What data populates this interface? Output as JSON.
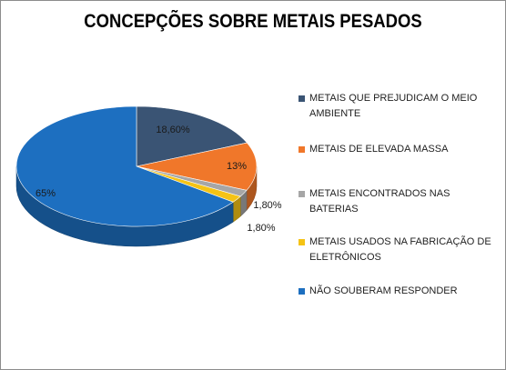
{
  "chart_data": {
    "type": "pie",
    "title": "CONCEPÇÕES SOBRE METAIS PESADOS",
    "categories": [
      "METAIS QUE PREJUDICAM O MEIO AMBIENTE",
      "METAIS DE ELEVADA MASSA",
      "METAIS ENCONTRADOS NAS BATERIAS",
      "METAIS USADOS NA FABRICAÇÃO DE ELETRÔNICOS",
      "NÃO SOUBERAM RESPONDER"
    ],
    "values": [
      18.6,
      13,
      1.8,
      1.8,
      65
    ],
    "data_labels": [
      "18,60%",
      "13%",
      "1,80%",
      "1,80%",
      "65%"
    ],
    "colors": [
      "#3a5474",
      "#f0772a",
      "#a6a6a6",
      "#f5c315",
      "#1d6fc0"
    ],
    "legend_placement": "right",
    "style": "3d"
  }
}
